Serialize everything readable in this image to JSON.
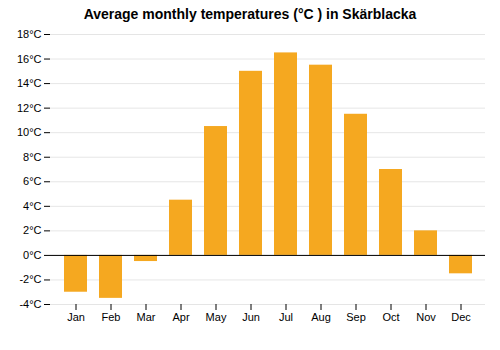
{
  "chart_data": {
    "type": "bar",
    "title": "Average monthly temperatures (°C ) in Skärblacka",
    "categories": [
      "Jan",
      "Feb",
      "Mar",
      "Apr",
      "May",
      "Jun",
      "Jul",
      "Aug",
      "Sep",
      "Oct",
      "Nov",
      "Dec"
    ],
    "values": [
      -3.0,
      -3.5,
      -0.5,
      4.5,
      10.5,
      15.0,
      16.5,
      15.5,
      11.5,
      7.0,
      2.0,
      -1.5
    ],
    "color": "#F5A820",
    "ylim": [
      -4,
      18
    ],
    "yticks": [
      {
        "value": -4,
        "label": "-4°C"
      },
      {
        "value": -2,
        "label": "-2°C"
      },
      {
        "value": 0,
        "label": "0°C"
      },
      {
        "value": 2,
        "label": "2°C"
      },
      {
        "value": 4,
        "label": "4°C"
      },
      {
        "value": 6,
        "label": "6°C"
      },
      {
        "value": 8,
        "label": "8°C"
      },
      {
        "value": 10,
        "label": "10°C"
      },
      {
        "value": 12,
        "label": "12°C"
      },
      {
        "value": 14,
        "label": "14°C"
      },
      {
        "value": 16,
        "label": "16°C"
      },
      {
        "value": 18,
        "label": "18°C"
      }
    ],
    "grid": true
  }
}
